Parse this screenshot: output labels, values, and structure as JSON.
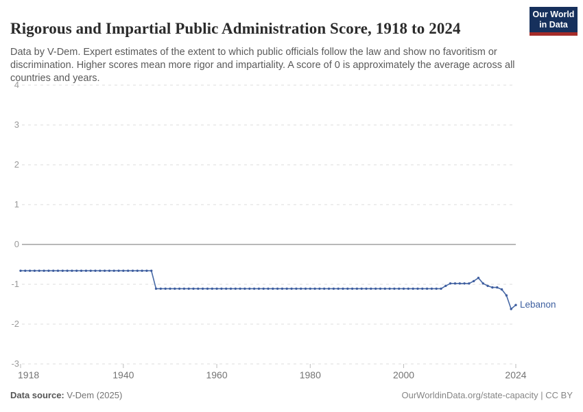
{
  "header": {
    "title": "Rigorous and Impartial Public Administration Score, 1918 to 2024",
    "subtitle": "Data by V-Dem. Expert estimates of the extent to which public officials follow the law and show no favoritism or discrimination. Higher scores mean more rigor and impartiality. A score of 0 is approximately the average across all countries and years.",
    "logo": {
      "line1": "Our World",
      "line2": "in Data"
    }
  },
  "footer": {
    "source_label": "Data source:",
    "source_value": " V-Dem (2025)",
    "rights": "OurWorldinData.org/state-capacity | CC BY"
  },
  "colors": {
    "line": "#4668a5",
    "marker": "#3e5d9f",
    "entity_label": "#3d5fa0",
    "grid": "#dddddd",
    "zero_line": "#a1a1a1",
    "y_tick_text": "#9a9a9a",
    "x_tick_text": "#737373",
    "tick_mark": "#bbbbbb"
  },
  "chart_data": {
    "type": "line",
    "title": "Rigorous and Impartial Public Administration Score, 1918 to 2024",
    "xlabel": "",
    "ylabel": "",
    "xlim": [
      1918,
      2024
    ],
    "ylim": [
      -3,
      4
    ],
    "yticks": [
      4,
      3,
      2,
      1,
      0,
      -1,
      -2,
      -3
    ],
    "xticks": [
      1918,
      1940,
      1960,
      1980,
      2000,
      2024
    ],
    "grid": "dashed-horizontal",
    "legend_position": "end-of-line-label",
    "years": {
      "start": 1918,
      "end": 2024,
      "step": 1
    },
    "series": [
      {
        "name": "Lebanon",
        "values": [
          -0.66,
          -0.66,
          -0.66,
          -0.66,
          -0.66,
          -0.66,
          -0.66,
          -0.66,
          -0.66,
          -0.66,
          -0.66,
          -0.66,
          -0.66,
          -0.66,
          -0.66,
          -0.66,
          -0.66,
          -0.66,
          -0.66,
          -0.66,
          -0.66,
          -0.66,
          -0.66,
          -0.66,
          -0.66,
          -0.66,
          -0.66,
          -0.66,
          -0.66,
          -1.11,
          -1.11,
          -1.11,
          -1.11,
          -1.11,
          -1.11,
          -1.11,
          -1.11,
          -1.11,
          -1.11,
          -1.11,
          -1.11,
          -1.11,
          -1.11,
          -1.11,
          -1.11,
          -1.11,
          -1.11,
          -1.11,
          -1.11,
          -1.11,
          -1.11,
          -1.11,
          -1.11,
          -1.11,
          -1.11,
          -1.11,
          -1.11,
          -1.11,
          -1.11,
          -1.11,
          -1.11,
          -1.11,
          -1.11,
          -1.11,
          -1.11,
          -1.11,
          -1.11,
          -1.11,
          -1.11,
          -1.11,
          -1.11,
          -1.11,
          -1.11,
          -1.11,
          -1.11,
          -1.11,
          -1.11,
          -1.11,
          -1.11,
          -1.11,
          -1.11,
          -1.11,
          -1.11,
          -1.11,
          -1.11,
          -1.11,
          -1.11,
          -1.11,
          -1.11,
          -1.11,
          -1.11,
          -1.04,
          -0.98,
          -0.98,
          -0.98,
          -0.98,
          -0.98,
          -0.92,
          -0.84,
          -0.98,
          -1.04,
          -1.08,
          -1.08,
          -1.13,
          -1.28,
          -1.62,
          -1.52
        ]
      }
    ]
  }
}
